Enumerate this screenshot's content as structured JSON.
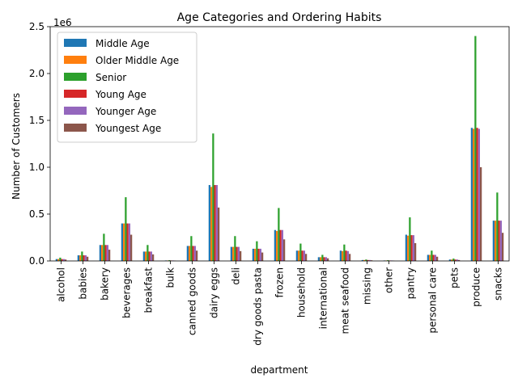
{
  "chart_data": {
    "type": "bar",
    "title": "Age Categories and Ordering Habits",
    "xlabel": "department",
    "ylabel": "Number of Customers",
    "offset_text": "1e6",
    "ylim": [
      0,
      2500000
    ],
    "yticks": [
      0,
      500000,
      1000000,
      1500000,
      2000000,
      2500000
    ],
    "ytick_labels": [
      "0.0",
      "0.5",
      "1.0",
      "1.5",
      "2.0",
      "2.5"
    ],
    "legend_position": "top-left",
    "grid": false,
    "categories": [
      "alcohol",
      "babies",
      "bakery",
      "beverages",
      "breakfast",
      "bulk",
      "canned goods",
      "dairy eggs",
      "deli",
      "dry goods pasta",
      "frozen",
      "household",
      "international",
      "meat seafood",
      "missing",
      "other",
      "pantry",
      "personal care",
      "pets",
      "produce",
      "snacks"
    ],
    "series": [
      {
        "name": "Middle Age",
        "color": "#1f77b4",
        "values": [
          20000,
          60000,
          170000,
          400000,
          100000,
          5000,
          160000,
          810000,
          150000,
          130000,
          330000,
          110000,
          40000,
          110000,
          10000,
          5000,
          280000,
          65000,
          15000,
          1420000,
          430000
        ]
      },
      {
        "name": "Older Middle Age",
        "color": "#ff7f0e",
        "values": [
          20000,
          60000,
          170000,
          400000,
          100000,
          5000,
          160000,
          790000,
          150000,
          130000,
          320000,
          110000,
          40000,
          105000,
          10000,
          5000,
          270000,
          65000,
          15000,
          1410000,
          430000
        ]
      },
      {
        "name": "Senior",
        "color": "#2ca02c",
        "values": [
          35000,
          100000,
          290000,
          680000,
          170000,
          8000,
          265000,
          1360000,
          265000,
          210000,
          565000,
          185000,
          65000,
          175000,
          15000,
          8000,
          465000,
          110000,
          25000,
          2400000,
          730000
        ]
      },
      {
        "name": "Young Age",
        "color": "#d62728",
        "values": [
          20000,
          60000,
          170000,
          400000,
          100000,
          5000,
          160000,
          810000,
          150000,
          130000,
          330000,
          110000,
          40000,
          110000,
          10000,
          5000,
          275000,
          65000,
          15000,
          1420000,
          430000
        ]
      },
      {
        "name": "Younger Age",
        "color": "#9467bd",
        "values": [
          20000,
          60000,
          170000,
          400000,
          100000,
          5000,
          160000,
          810000,
          150000,
          130000,
          330000,
          110000,
          40000,
          105000,
          10000,
          5000,
          275000,
          65000,
          15000,
          1410000,
          430000
        ]
      },
      {
        "name": "Youngest Age",
        "color": "#8c564b",
        "values": [
          15000,
          45000,
          120000,
          280000,
          70000,
          3000,
          110000,
          570000,
          105000,
          90000,
          230000,
          75000,
          28000,
          75000,
          7000,
          3000,
          190000,
          45000,
          10000,
          1000000,
          300000
        ]
      }
    ]
  }
}
